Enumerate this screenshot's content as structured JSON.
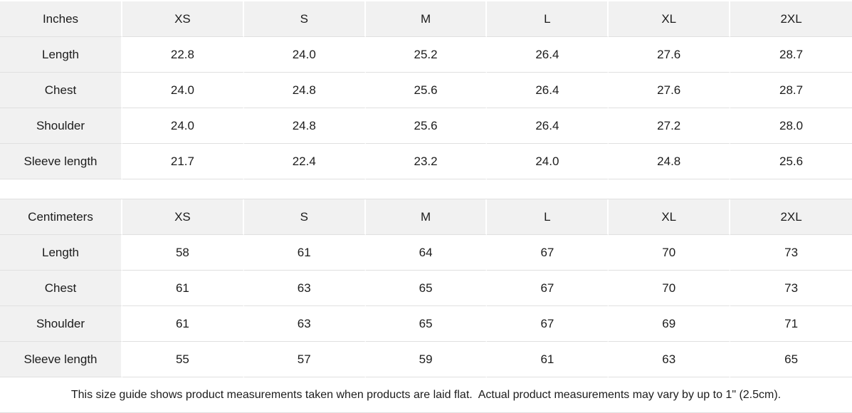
{
  "colors": {
    "background": "#ffffff",
    "header_cell_bg": "#f1f1f1",
    "row_divider": "#e0e0e0",
    "text": "#1c1c1c"
  },
  "size_guide": {
    "tables": [
      {
        "unit_label": "Inches",
        "size_headers": [
          "XS",
          "S",
          "M",
          "L",
          "XL",
          "2XL"
        ],
        "rows": [
          {
            "label": "Length",
            "values": [
              "22.8",
              "24.0",
              "25.2",
              "26.4",
              "27.6",
              "28.7"
            ]
          },
          {
            "label": "Chest",
            "values": [
              "24.0",
              "24.8",
              "25.6",
              "26.4",
              "27.6",
              "28.7"
            ]
          },
          {
            "label": "Shoulder",
            "values": [
              "24.0",
              "24.8",
              "25.6",
              "26.4",
              "27.2",
              "28.0"
            ]
          },
          {
            "label": "Sleeve length",
            "values": [
              "21.7",
              "22.4",
              "23.2",
              "24.0",
              "24.8",
              "25.6"
            ]
          }
        ]
      },
      {
        "unit_label": "Centimeters",
        "size_headers": [
          "XS",
          "S",
          "M",
          "L",
          "XL",
          "2XL"
        ],
        "rows": [
          {
            "label": "Length",
            "values": [
              "58",
              "61",
              "64",
              "67",
              "70",
              "73"
            ]
          },
          {
            "label": "Chest",
            "values": [
              "61",
              "63",
              "65",
              "67",
              "70",
              "73"
            ]
          },
          {
            "label": "Shoulder",
            "values": [
              "61",
              "63",
              "65",
              "67",
              "69",
              "71"
            ]
          },
          {
            "label": "Sleeve length",
            "values": [
              "55",
              "57",
              "59",
              "61",
              "63",
              "65"
            ]
          }
        ]
      }
    ],
    "footnote": "This size guide shows product measurements taken when products are laid flat.  Actual product measurements may vary by up to 1\" (2.5cm)."
  }
}
